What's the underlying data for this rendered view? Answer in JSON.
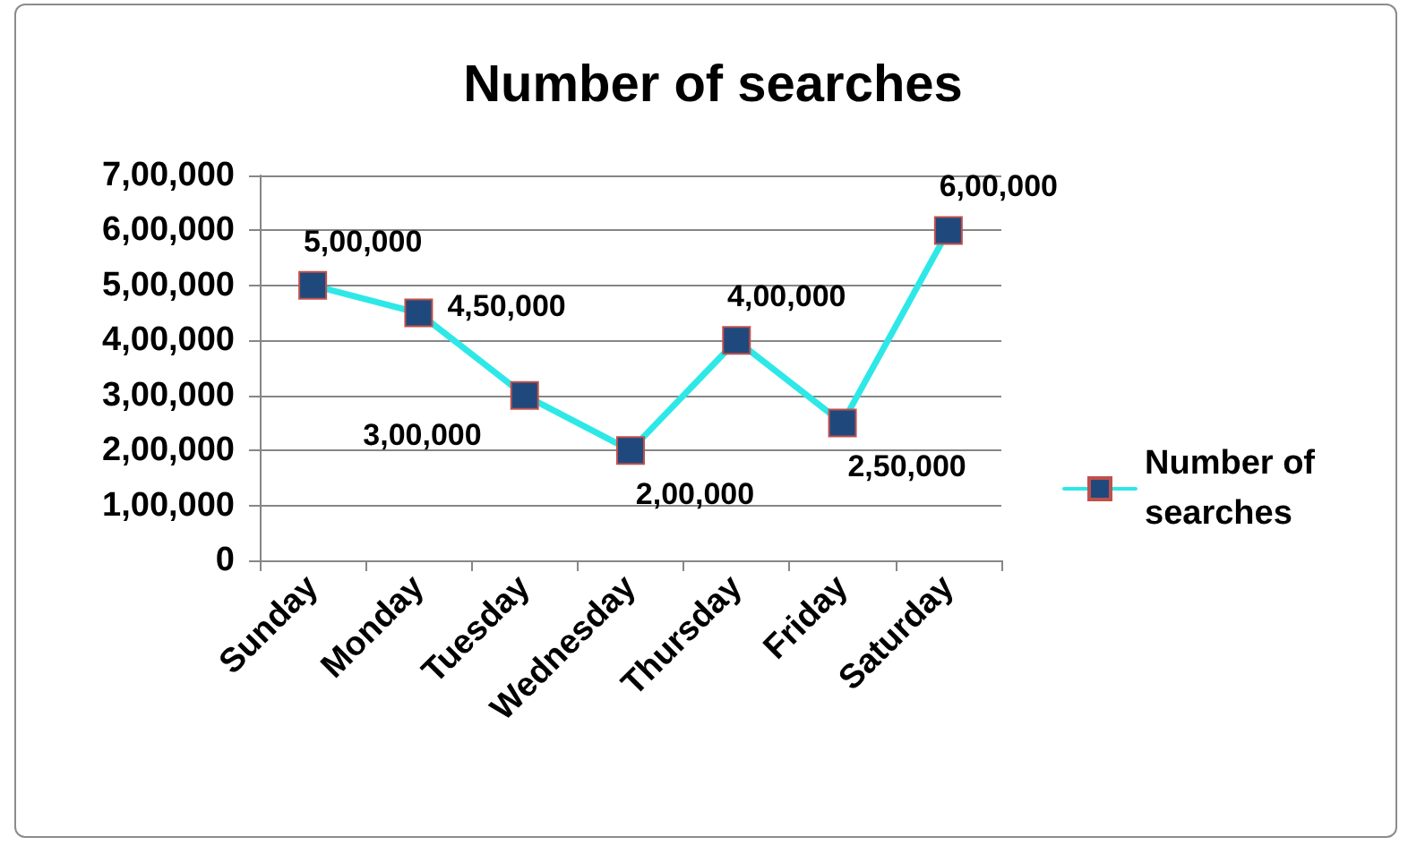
{
  "chart_data": {
    "type": "line",
    "title": "Number of searches",
    "categories": [
      "Sunday",
      "Monday",
      "Tuesday",
      "Wednesday",
      "Thursday",
      "Friday",
      "Saturday"
    ],
    "series": [
      {
        "name": "Number of searches",
        "color": "#2ee8e8",
        "values": [
          500000,
          450000,
          300000,
          200000,
          400000,
          250000,
          600000
        ],
        "value_labels": [
          "5,00,000",
          "4,50,000",
          "3,00,000",
          "2,00,000",
          "4,00,000",
          "2,50,000",
          "6,00,000"
        ]
      }
    ],
    "ylim": [
      0,
      700000
    ],
    "yticks": [
      {
        "value": 0,
        "label": "0"
      },
      {
        "value": 100000,
        "label": "1,00,000"
      },
      {
        "value": 200000,
        "label": "2,00,000"
      },
      {
        "value": 300000,
        "label": "3,00,000"
      },
      {
        "value": 400000,
        "label": "4,00,000"
      },
      {
        "value": 500000,
        "label": "5,00,000"
      },
      {
        "value": 600000,
        "label": "6,00,000"
      },
      {
        "value": 700000,
        "label": "7,00,000"
      }
    ],
    "grid": "y",
    "legend": "right",
    "marker": "square",
    "line_style": "solid"
  }
}
